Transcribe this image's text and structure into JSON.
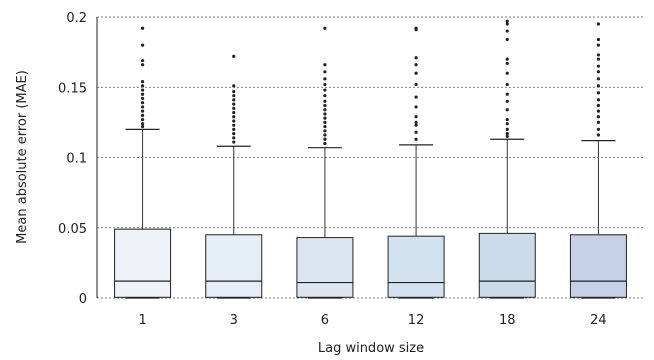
{
  "chart_data": {
    "type": "box",
    "xlabel": "Lag window size",
    "ylabel": "Mean absolute error (MAE)",
    "ylim": [
      0,
      0.2
    ],
    "yticks": [
      0,
      0.05,
      0.1,
      0.15,
      0.2
    ],
    "ytick_labels": [
      "0",
      "0.05",
      "0.1",
      "0.15",
      "0.2"
    ],
    "grid": true,
    "categories": [
      "1",
      "3",
      "6",
      "12",
      "18",
      "24"
    ],
    "colors": [
      "#eef3f9",
      "#e5eef6",
      "#dbe6f1",
      "#d2e2ef",
      "#cbdbec",
      "#c4d1e6"
    ],
    "boxes": [
      {
        "whislo": 0.0,
        "q1": 0.0005,
        "median": 0.012,
        "q3": 0.049,
        "whishi": 0.12,
        "outliers": [
          0.122,
          0.124,
          0.127,
          0.13,
          0.133,
          0.136,
          0.139,
          0.142,
          0.145,
          0.148,
          0.151,
          0.154,
          0.166,
          0.169,
          0.18,
          0.192
        ]
      },
      {
        "whislo": 0.0,
        "q1": 0.0005,
        "median": 0.012,
        "q3": 0.045,
        "whishi": 0.108,
        "outliers": [
          0.111,
          0.114,
          0.117,
          0.12,
          0.123,
          0.126,
          0.129,
          0.132,
          0.135,
          0.138,
          0.141,
          0.144,
          0.147,
          0.151,
          0.172
        ]
      },
      {
        "whislo": 0.0,
        "q1": 0.0005,
        "median": 0.011,
        "q3": 0.043,
        "whishi": 0.107,
        "outliers": [
          0.11,
          0.113,
          0.116,
          0.119,
          0.122,
          0.125,
          0.128,
          0.131,
          0.134,
          0.137,
          0.14,
          0.144,
          0.148,
          0.152,
          0.156,
          0.161,
          0.166,
          0.192
        ]
      },
      {
        "whislo": 0.0,
        "q1": 0.0005,
        "median": 0.011,
        "q3": 0.044,
        "whishi": 0.109,
        "outliers": [
          0.113,
          0.118,
          0.123,
          0.125,
          0.129,
          0.136,
          0.143,
          0.152,
          0.16,
          0.166,
          0.171,
          0.191,
          0.192
        ]
      },
      {
        "whislo": 0.0,
        "q1": 0.0005,
        "median": 0.012,
        "q3": 0.046,
        "whishi": 0.113,
        "outliers": [
          0.115,
          0.117,
          0.12,
          0.124,
          0.127,
          0.134,
          0.14,
          0.145,
          0.152,
          0.16,
          0.167,
          0.17,
          0.184,
          0.19,
          0.195,
          0.197
        ]
      },
      {
        "whislo": 0.0,
        "q1": 0.0005,
        "median": 0.012,
        "q3": 0.045,
        "whishi": 0.112,
        "outliers": [
          0.116,
          0.12,
          0.125,
          0.129,
          0.133,
          0.137,
          0.141,
          0.146,
          0.151,
          0.156,
          0.161,
          0.165,
          0.17,
          0.173,
          0.18,
          0.184,
          0.195
        ]
      }
    ]
  }
}
